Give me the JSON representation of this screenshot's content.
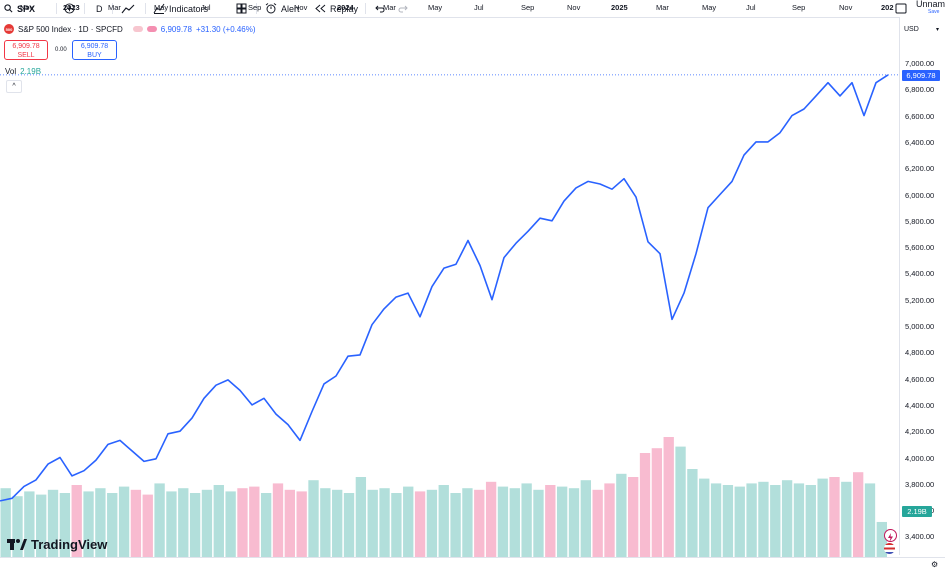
{
  "toolbar": {
    "symbol": "SPX",
    "interval": "D",
    "indicators_label": "Indicators",
    "alert_label": "Alert",
    "replay_label": "Replay",
    "layout_name": "Unnam",
    "save_label": "Save"
  },
  "legend": {
    "logo_text": "500",
    "title": "S&P 500 Index · 1D · SPCFD",
    "last": "6,909.78",
    "change": "+31.30 (+0.46%)"
  },
  "trade": {
    "sell_price": "6,909.78",
    "sell_label": "SELL",
    "spread": "0.00",
    "buy_price": "6,909.78",
    "buy_label": "BUY"
  },
  "volume": {
    "label": "Vol",
    "value": "2.19B"
  },
  "price_axis": {
    "currency": "USD",
    "ticks": [
      "7,000.00",
      "6,800.00",
      "6,600.00",
      "6,400.00",
      "6,200.00",
      "6,000.00",
      "5,800.00",
      "5,600.00",
      "5,400.00",
      "5,200.00",
      "5,000.00",
      "4,800.00",
      "4,600.00",
      "4,400.00",
      "4,200.00",
      "4,000.00",
      "3,800.00",
      "3,600.00",
      "3,400.00"
    ],
    "last_price_badge": "6,909.78",
    "volume_badge": "2.19B"
  },
  "time_axis": {
    "labels": [
      "Nov",
      "2023",
      "Mar",
      "May",
      "Jul",
      "Sep",
      "Nov",
      "2024",
      "Mar",
      "May",
      "Jul",
      "Sep",
      "Nov",
      "2025",
      "Mar",
      "May",
      "Jul",
      "Sep",
      "Nov",
      "202"
    ],
    "bold": [
      "2023",
      "2024",
      "2025",
      "202"
    ]
  },
  "branding": {
    "text": "TradingView"
  },
  "colors": {
    "line": "#2962ff",
    "up_volume": "#b2dfdb",
    "down_volume": "#f8bbd0",
    "sell": "#f23645",
    "buy": "#2962ff",
    "volume_value": "#26a69a"
  },
  "chart_data": {
    "type": "line",
    "series": [
      {
        "values": [
          3670,
          3690,
          3780,
          3830,
          3950,
          4000,
          3860,
          3900,
          3980,
          4100,
          4130,
          4050,
          3970,
          3990,
          4180,
          4200,
          4300,
          4450,
          4550,
          4590,
          4510,
          4400,
          4450,
          4330,
          4250,
          4130,
          4350,
          4560,
          4620,
          4770,
          4780,
          5010,
          5130,
          5220,
          5250,
          5070,
          5300,
          5440,
          5470,
          5650,
          5460,
          5200,
          5520,
          5630,
          5720,
          5820,
          5800,
          5950,
          6050,
          6100,
          6080,
          6040,
          6120,
          5980,
          5640,
          5550,
          5050,
          5250,
          5550,
          5900,
          6000,
          6100,
          6300,
          6400,
          6400,
          6470,
          6600,
          6650,
          6750,
          6850,
          6750,
          6850,
          6600,
          6850,
          6909.78
        ]
      }
    ],
    "volume": [
      4.3,
      3.8,
      4.1,
      3.9,
      4.2,
      4.0,
      4.5,
      4.1,
      4.3,
      4.0,
      4.4,
      4.2,
      3.9,
      4.6,
      4.1,
      4.3,
      4.0,
      4.2,
      4.5,
      4.1,
      4.3,
      4.4,
      4.0,
      4.6,
      4.2,
      4.1,
      4.8,
      4.3,
      4.2,
      4.0,
      5.0,
      4.2,
      4.3,
      4.0,
      4.4,
      4.1,
      4.2,
      4.5,
      4.0,
      4.3,
      4.2,
      4.7,
      4.4,
      4.3,
      4.6,
      4.2,
      4.5,
      4.4,
      4.3,
      4.8,
      4.2,
      4.6,
      5.2,
      5.0,
      6.5,
      6.8,
      7.5,
      6.9,
      5.5,
      4.9,
      4.6,
      4.5,
      4.4,
      4.6,
      4.7,
      4.5,
      4.8,
      4.6,
      4.5,
      4.9,
      5.0,
      4.7,
      5.3,
      4.6,
      2.19
    ],
    "ylim": [
      3300,
      7100
    ],
    "x_start": "2022-10",
    "x_end": "2025-12",
    "grid": false
  }
}
